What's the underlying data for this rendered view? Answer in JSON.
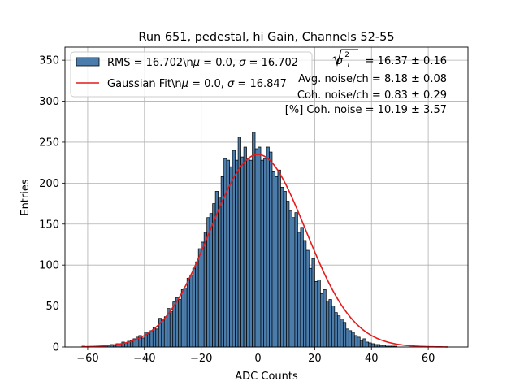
{
  "chart_data": {
    "type": "bar",
    "title": "Run 651, pedestal, hi Gain, Channels 52-55",
    "xlabel": "ADC Counts",
    "ylabel": "Entries",
    "xlim": [
      -68,
      74
    ],
    "ylim": [
      0,
      366
    ],
    "xticks": [
      -60,
      -40,
      -20,
      0,
      20,
      40,
      60
    ],
    "yticks": [
      0,
      50,
      100,
      150,
      200,
      250,
      300,
      350
    ],
    "grid": true,
    "bin_start": -62,
    "bin_width": 1,
    "counts": [
      1,
      0,
      0,
      0,
      0,
      1,
      1,
      1,
      2,
      2,
      3,
      2,
      4,
      4,
      6,
      5,
      7,
      8,
      10,
      12,
      14,
      11,
      18,
      16,
      20,
      24,
      22,
      35,
      33,
      37,
      47,
      43,
      55,
      60,
      58,
      70,
      72,
      84,
      88,
      96,
      104,
      120,
      128,
      140,
      158,
      163,
      175,
      190,
      183,
      208,
      230,
      228,
      220,
      240,
      228,
      256,
      232,
      244,
      230,
      228,
      262,
      242,
      244,
      228,
      230,
      244,
      238,
      214,
      208,
      216,
      195,
      190,
      178,
      166,
      158,
      164,
      140,
      146,
      130,
      118,
      96,
      108,
      80,
      82,
      65,
      70,
      56,
      58,
      50,
      42,
      38,
      34,
      30,
      22,
      20,
      18,
      14,
      12,
      8,
      10,
      6,
      5,
      4,
      3,
      3,
      2,
      2,
      1,
      1,
      1,
      1,
      0,
      0,
      0,
      0,
      0,
      0,
      0,
      0,
      0,
      0,
      0,
      0,
      0,
      0,
      0,
      0,
      0,
      0,
      0
    ],
    "series": [
      {
        "name": "RMS = 16.702\\n$\\mu$ = 0.0, $\\sigma$ = 16.702",
        "type": "histogram",
        "color": "#4b7dac",
        "edge": "#000000"
      },
      {
        "name": "Gaussian Fit\\n$\\mu$ = 0.0, $\\sigma$ = 16.847",
        "type": "line",
        "color": "#e41a1c",
        "mu": 0.0,
        "sigma": 16.847,
        "amplitude": 235,
        "x_range": [
          -62,
          67
        ]
      }
    ],
    "legend": {
      "position": "top-left",
      "entries": [
        {
          "pre": "RMS = 16.702\\n",
          "mu_sym": "μ",
          "mid": " = 0.0, ",
          "sigma_sym": "σ",
          "post": " = 16.702"
        },
        {
          "pre": "Gaussian Fit\\n",
          "mu_sym": "μ",
          "mid": " = 0.0, ",
          "sigma_sym": "σ",
          "post": " = 16.847"
        }
      ]
    },
    "annotations": {
      "sigma_total": {
        "symbol": "σ",
        "sub": "i",
        "sup": "2",
        "text": "= 16.37 ± 0.16"
      },
      "avg_noise": "Avg. noise/ch = 8.18 ± 0.08",
      "coh_noise": "Coh. noise/ch = 0.83 ± 0.29",
      "pct_coh": "[%] Coh. noise = 10.19 ± 3.57"
    }
  }
}
